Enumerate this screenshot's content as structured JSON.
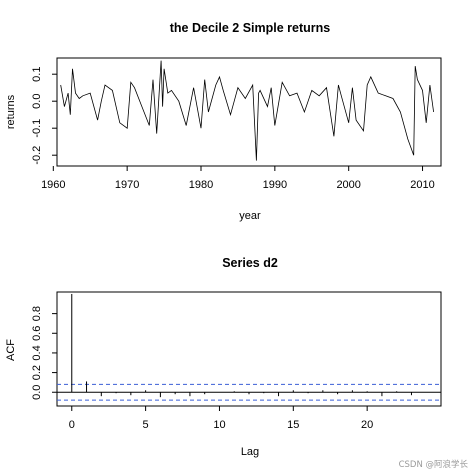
{
  "chart_data": [
    {
      "type": "line",
      "title": "the Decile 2 Simple returns",
      "xlabel": "year",
      "ylabel": "returns",
      "xlim": [
        1960.5,
        2012.5
      ],
      "ylim": [
        -0.24,
        0.16
      ],
      "xticks": [
        "1960",
        "1970",
        "1980",
        "1990",
        "2000",
        "2010"
      ],
      "xtick_values": [
        1960,
        1970,
        1980,
        1990,
        2000,
        2010
      ],
      "yticks": [
        "-0.2",
        "-0.1",
        "0.0",
        "0.1"
      ],
      "ytick_values": [
        -0.2,
        -0.1,
        0.0,
        0.1
      ],
      "series": [
        {
          "x": [
            1961,
            1961.5,
            1962,
            1962.3,
            1962.6,
            1963,
            1963.5,
            1964,
            1965,
            1966,
            1966.5,
            1967,
            1968,
            1969,
            1970,
            1970.5,
            1971,
            1972,
            1973,
            1973.5,
            1974,
            1974.6,
            1974.8,
            1975,
            1975.5,
            1976,
            1977,
            1978,
            1979,
            1980,
            1980.5,
            1981,
            1982,
            1982.5,
            1983,
            1984,
            1985,
            1986,
            1987,
            1987.5,
            1987.8,
            1988,
            1989,
            1989.5,
            1990,
            1991,
            1992,
            1993,
            1994,
            1995,
            1996,
            1997,
            1998,
            1998.6,
            1999,
            2000,
            2000.5,
            2001,
            2002,
            2002.5,
            2003,
            2004,
            2005,
            2006,
            2007,
            2008,
            2008.8,
            2009,
            2009.3,
            2010,
            2010.5,
            2011,
            2011.5
          ],
          "y": [
            0.06,
            -0.02,
            0.03,
            -0.05,
            0.12,
            0.03,
            0.01,
            0.02,
            0.03,
            -0.07,
            0.0,
            0.06,
            0.04,
            -0.08,
            -0.1,
            0.07,
            0.05,
            -0.02,
            -0.09,
            0.08,
            -0.12,
            0.15,
            -0.02,
            0.12,
            0.03,
            0.04,
            0.0,
            -0.09,
            0.05,
            -0.1,
            0.08,
            -0.04,
            0.06,
            0.09,
            0.04,
            -0.05,
            0.05,
            0.01,
            0.06,
            -0.22,
            0.03,
            0.04,
            -0.02,
            0.05,
            -0.09,
            0.07,
            0.02,
            0.03,
            -0.04,
            0.04,
            0.02,
            0.05,
            -0.13,
            0.06,
            0.02,
            -0.08,
            0.05,
            -0.07,
            -0.11,
            0.06,
            0.09,
            0.03,
            0.02,
            0.01,
            -0.04,
            -0.14,
            -0.2,
            0.13,
            0.08,
            0.04,
            -0.08,
            0.06,
            -0.04
          ]
        }
      ]
    },
    {
      "type": "bar",
      "title": "Series  d2",
      "xlabel": "Lag",
      "ylabel": "ACF",
      "xlim": [
        -1,
        25
      ],
      "ylim": [
        -0.14,
        1.02
      ],
      "xticks": [
        "0",
        "5",
        "10",
        "15",
        "20"
      ],
      "xtick_values": [
        0,
        5,
        10,
        15,
        20
      ],
      "yticks": [
        "0.0",
        "0.2",
        "0.4",
        "0.6",
        "0.8"
      ],
      "ytick_values": [
        0.0,
        0.2,
        0.4,
        0.6,
        0.8
      ],
      "confidence_band": [
        -0.08,
        0.08
      ],
      "categories": [
        0,
        1,
        2,
        3,
        4,
        5,
        6,
        7,
        8,
        9,
        10,
        11,
        12,
        13,
        14,
        15,
        16,
        17,
        18,
        19,
        20,
        21,
        22,
        23,
        24
      ],
      "values": [
        1.0,
        0.11,
        -0.04,
        -0.01,
        -0.03,
        0.02,
        -0.05,
        -0.02,
        -0.04,
        -0.02,
        0.0,
        0.01,
        -0.02,
        -0.01,
        -0.04,
        0.02,
        -0.01,
        0.02,
        -0.02,
        0.02,
        0.01,
        -0.04,
        0.01,
        -0.03,
        0.0
      ]
    }
  ],
  "watermark": "CSDN @阿浪学长"
}
